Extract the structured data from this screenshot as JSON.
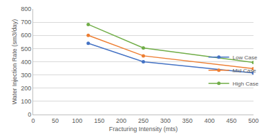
{
  "chart_data": {
    "type": "line",
    "x_label": "Fracturing Intensity (mts)",
    "y_label": "Water Injection Rate (sm3/day)",
    "x": [
      125,
      250,
      500
    ],
    "series": [
      {
        "name": "Low Case",
        "color": "#4472c4",
        "values": [
          540,
          400,
          315
        ]
      },
      {
        "name": "Mid Case",
        "color": "#ed7d31",
        "values": [
          600,
          445,
          348
        ]
      },
      {
        "name": "High Case",
        "color": "#70ad47",
        "values": [
          683,
          505,
          395
        ]
      }
    ],
    "xlim": [
      0,
      500
    ],
    "xticks": [
      0,
      50,
      100,
      150,
      200,
      250,
      300,
      350,
      400,
      450,
      500
    ],
    "ylim": [
      0,
      800
    ],
    "yticks": [
      0,
      100,
      200,
      300,
      400,
      500,
      600,
      700,
      800
    ],
    "grid": true,
    "legend": "right",
    "marker": "circle"
  }
}
